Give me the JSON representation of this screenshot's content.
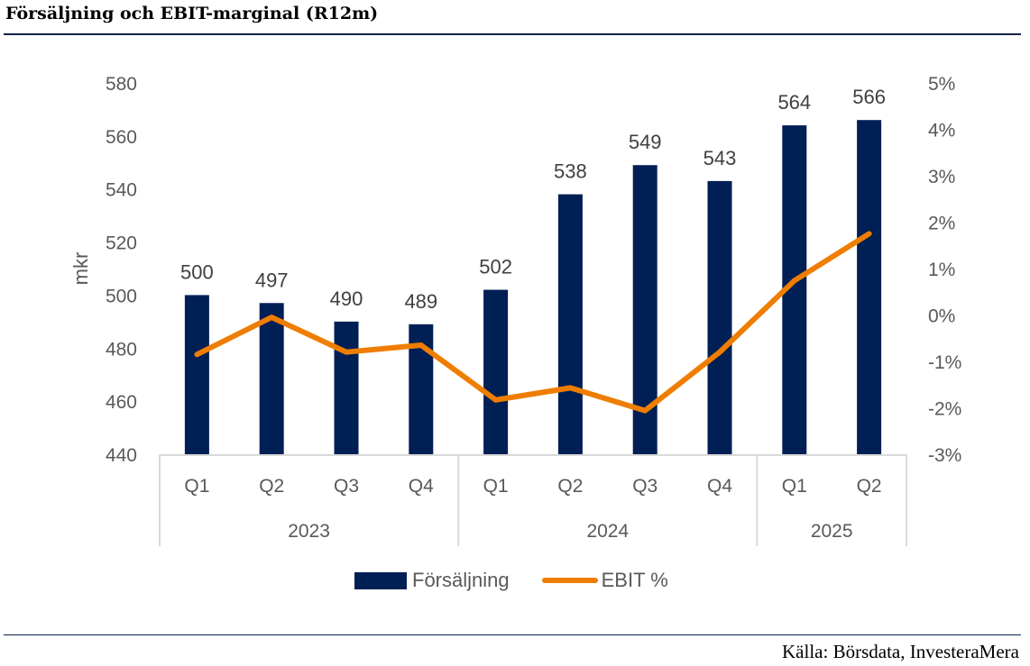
{
  "header": {
    "title": "Försäljning och EBIT-marginal (R12m)"
  },
  "footer": {
    "source": "Källa: Börsdata, InvesteraMera"
  },
  "colors": {
    "bars": "#001f54",
    "line": "#ef7d00",
    "grid": "#d9d9d9",
    "text": "#595959"
  },
  "chart_data": {
    "type": "bar+line",
    "title": "Försäljning och EBIT-marginal (R12m)",
    "categories": [
      {
        "quarter": "Q1",
        "year": "2023"
      },
      {
        "quarter": "Q2",
        "year": "2023"
      },
      {
        "quarter": "Q3",
        "year": "2023"
      },
      {
        "quarter": "Q4",
        "year": "2023"
      },
      {
        "quarter": "Q1",
        "year": "2024"
      },
      {
        "quarter": "Q2",
        "year": "2024"
      },
      {
        "quarter": "Q3",
        "year": "2024"
      },
      {
        "quarter": "Q4",
        "year": "2024"
      },
      {
        "quarter": "Q1",
        "year": "2025"
      },
      {
        "quarter": "Q2",
        "year": "2025"
      }
    ],
    "years": [
      "2023",
      "2024",
      "2025"
    ],
    "series": [
      {
        "name": "Försäljning",
        "type": "bar",
        "axis": "left",
        "values": [
          500,
          497,
          490,
          489,
          502,
          538,
          549,
          543,
          564,
          566
        ],
        "labels": [
          "500",
          "497",
          "490",
          "489",
          "502",
          "538",
          "549",
          "543",
          "564",
          "566"
        ]
      },
      {
        "name": "EBIT %",
        "type": "line",
        "axis": "right",
        "values": [
          -0.85,
          -0.05,
          -0.8,
          -0.65,
          -1.83,
          -1.57,
          -2.06,
          -0.8,
          0.74,
          1.75
        ]
      }
    ],
    "ylabel": "mkr",
    "ylim": [
      440,
      580
    ],
    "yticks": [
      "580",
      "560",
      "540",
      "520",
      "500",
      "480",
      "460",
      "440"
    ],
    "y2lim": [
      -3,
      5
    ],
    "y2ticks": [
      "5%",
      "4%",
      "3%",
      "2%",
      "1%",
      "0%",
      "-1%",
      "-2%",
      "-3%"
    ],
    "grid": false,
    "legend": {
      "position": "bottom",
      "entries": [
        "Försäljning",
        "EBIT %"
      ]
    }
  }
}
